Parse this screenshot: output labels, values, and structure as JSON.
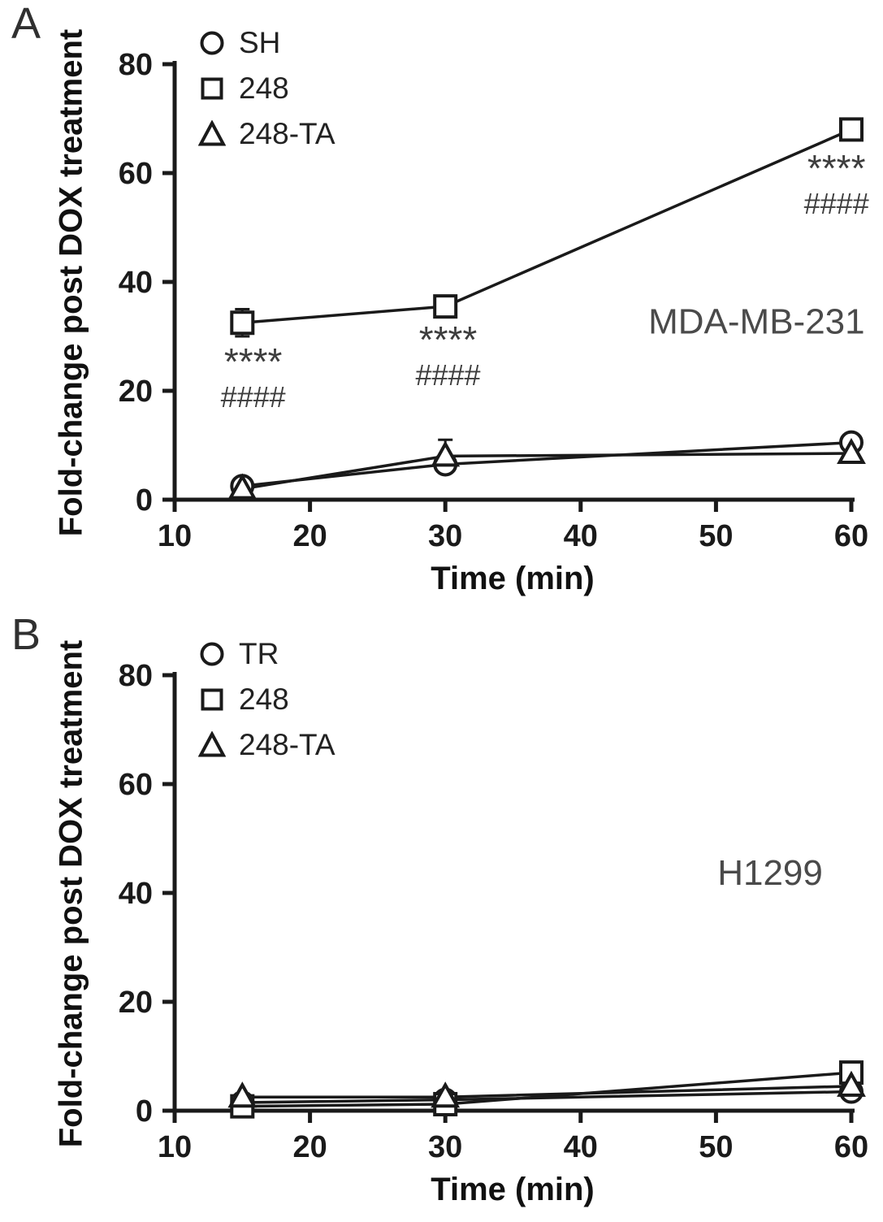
{
  "figure": {
    "background": "#ffffff",
    "ink_color": "#1a1a1a",
    "annotation_color": "#3d3d3d",
    "cell_label_color": "#4a4a4a"
  },
  "chart_data": [
    {
      "type": "line",
      "panel_label": "A",
      "cell_line_label": "MDA-MB-231",
      "cell_line_pos": {
        "x": 53,
        "y": 30.5
      },
      "xlabel": "Time (min)",
      "ylabel": "Fold-change post DOX treatment",
      "xlim": [
        10,
        60
      ],
      "ylim": [
        0,
        80
      ],
      "xticks": [
        10,
        20,
        30,
        40,
        50,
        60
      ],
      "yticks": [
        0,
        20,
        40,
        60,
        80
      ],
      "grid": false,
      "legend_position": "top-left-inside",
      "x": [
        15,
        30,
        60
      ],
      "series": [
        {
          "name": "SH",
          "marker": "circle",
          "values": [
            2.5,
            6.5,
            10.5
          ],
          "errors": [
            0.8,
            1.0,
            1.2
          ]
        },
        {
          "name": "248",
          "marker": "square",
          "values": [
            32.5,
            35.5,
            68.0
          ],
          "errors": [
            2.5,
            1.5,
            1.5
          ]
        },
        {
          "name": "248-TA",
          "marker": "triangle",
          "values": [
            2.0,
            8.0,
            8.5
          ],
          "errors": [
            0.8,
            3.0,
            1.0
          ]
        }
      ],
      "significance_annotations": [
        {
          "x": 15.8,
          "y": 23.0,
          "lines": [
            "****",
            "####"
          ]
        },
        {
          "x": 30.2,
          "y": 27.0,
          "lines": [
            "****",
            "####"
          ]
        },
        {
          "x": 58.9,
          "y": 58.5,
          "lines": [
            "****",
            "####"
          ]
        }
      ]
    },
    {
      "type": "line",
      "panel_label": "B",
      "cell_line_label": "H1299",
      "cell_line_pos": {
        "x": 54,
        "y": 41.5
      },
      "xlabel": "Time (min)",
      "ylabel": "Fold-change post DOX treatment",
      "xlim": [
        10,
        60
      ],
      "ylim": [
        0,
        80
      ],
      "xticks": [
        10,
        20,
        30,
        40,
        50,
        60
      ],
      "yticks": [
        0,
        20,
        40,
        60,
        80
      ],
      "grid": false,
      "legend_position": "top-left-inside",
      "x": [
        15,
        30,
        60
      ],
      "series": [
        {
          "name": "TR",
          "marker": "circle",
          "values": [
            1.5,
            2.0,
            3.5
          ],
          "errors": [
            0.5,
            0.5,
            0.8
          ]
        },
        {
          "name": "248",
          "marker": "square",
          "values": [
            0.8,
            1.2,
            7.0
          ],
          "errors": [
            0.4,
            0.8,
            1.0
          ]
        },
        {
          "name": "248-TA",
          "marker": "triangle",
          "values": [
            2.5,
            2.5,
            4.5
          ],
          "errors": [
            0.6,
            0.7,
            0.8
          ]
        }
      ],
      "significance_annotations": []
    }
  ]
}
